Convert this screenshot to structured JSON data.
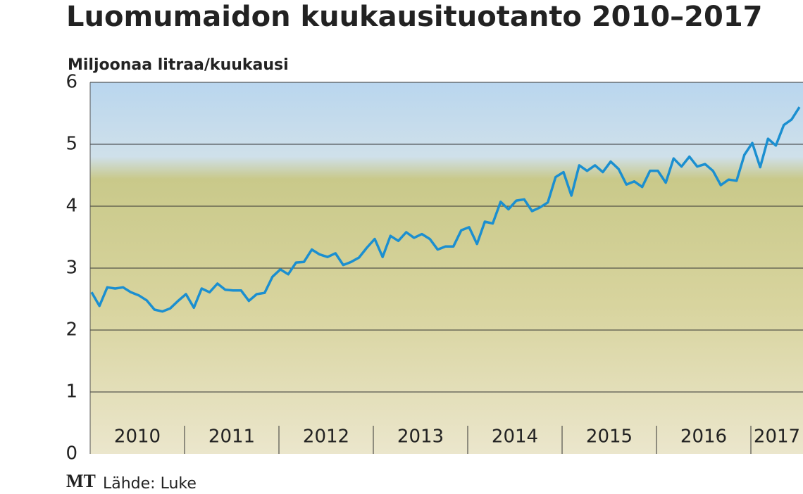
{
  "chart_data": {
    "type": "line",
    "title": "Luomumaidon kuukausituotanto 2010–2017",
    "y_label": "Miljoonaa litraa/kuukausi",
    "source_logo": "MT",
    "source": "Lähde: Luke",
    "x_labels": [
      "2010",
      "2011",
      "2012",
      "2013",
      "2014",
      "2015",
      "2016",
      "2017"
    ],
    "ylim": [
      0,
      6
    ],
    "yticks": [
      0,
      1,
      2,
      3,
      4,
      5,
      6
    ],
    "grid": true,
    "series": [
      {
        "color": "#1b8fd0",
        "values": [
          2.61,
          2.39,
          2.69,
          2.67,
          2.69,
          2.61,
          2.56,
          2.48,
          2.33,
          2.3,
          2.35,
          2.47,
          2.58,
          2.36,
          2.67,
          2.61,
          2.75,
          2.65,
          2.64,
          2.64,
          2.47,
          2.58,
          2.6,
          2.86,
          2.98,
          2.9,
          3.09,
          3.1,
          3.3,
          3.22,
          3.18,
          3.24,
          3.05,
          3.1,
          3.17,
          3.33,
          3.47,
          3.18,
          3.52,
          3.44,
          3.58,
          3.49,
          3.55,
          3.47,
          3.3,
          3.35,
          3.35,
          3.61,
          3.66,
          3.39,
          3.75,
          3.72,
          4.07,
          3.95,
          4.09,
          4.11,
          3.92,
          3.98,
          4.06,
          4.47,
          4.55,
          4.17,
          4.66,
          4.57,
          4.66,
          4.55,
          4.72,
          4.6,
          4.35,
          4.4,
          4.31,
          4.57,
          4.57,
          4.38,
          4.77,
          4.64,
          4.8,
          4.64,
          4.68,
          4.57,
          4.34,
          4.43,
          4.41,
          4.83,
          5.02,
          4.63,
          5.09,
          4.98,
          5.31,
          5.4,
          5.6
        ]
      }
    ]
  }
}
